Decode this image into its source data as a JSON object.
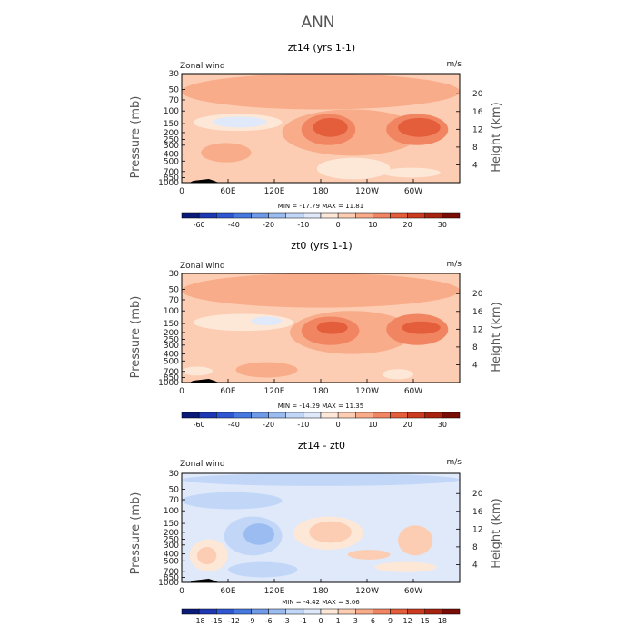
{
  "main_title": "ANN",
  "chart_data": [
    {
      "type": "heatmap",
      "title": "zt14 (yrs 1-1)",
      "field_label": "Zonal wind",
      "units": "m/s",
      "ylabel": "Pressure (mb)",
      "ylabel_right": "Height (km)",
      "x_ticks": [
        "0",
        "60E",
        "120E",
        "180",
        "120W",
        "60W"
      ],
      "x_values": [
        0,
        60,
        120,
        180,
        240,
        300
      ],
      "xlim": [
        0,
        360
      ],
      "y_ticks": [
        "30",
        "50",
        "70",
        "100",
        "150",
        "200",
        "250",
        "300",
        "400",
        "500",
        "700",
        "850",
        "1000"
      ],
      "y_values": [
        30,
        50,
        70,
        100,
        150,
        200,
        250,
        300,
        400,
        500,
        700,
        850,
        1000
      ],
      "ylim": [
        30,
        1000
      ],
      "height_ticks": [
        "20",
        "16",
        "12",
        "8",
        "4"
      ],
      "height_values": [
        20,
        16,
        12,
        8,
        4
      ],
      "stats": "MIN = -17.79   MAX =  11.81",
      "min": -17.79,
      "max": 11.81,
      "colorbar": [
        "-60",
        "-40",
        "-20",
        "-10",
        "0",
        "10",
        "20",
        "30"
      ],
      "colorbar_levels": [
        -70,
        -60,
        -50,
        -40,
        -30,
        -20,
        -15,
        -10,
        -5,
        0,
        5,
        10,
        15,
        20,
        25,
        30,
        35
      ],
      "background_level": 2,
      "regions": [
        {
          "lon": [
            0,
            360
          ],
          "p": [
            30,
            95
          ],
          "level": 5
        },
        {
          "lon": [
            15,
            130
          ],
          "p": [
            110,
            190
          ],
          "level": -5
        },
        {
          "lon": [
            40,
            110
          ],
          "p": [
            120,
            170
          ],
          "level": -10
        },
        {
          "lon": [
            130,
            310
          ],
          "p": [
            95,
            420
          ],
          "level": 5
        },
        {
          "lon": [
            155,
            225
          ],
          "p": [
            110,
            300
          ],
          "level": 10
        },
        {
          "lon": [
            170,
            215
          ],
          "p": [
            125,
            230
          ],
          "level": 15
        },
        {
          "lon": [
            265,
            345
          ],
          "p": [
            110,
            300
          ],
          "level": 10
        },
        {
          "lon": [
            280,
            335
          ],
          "p": [
            125,
            230
          ],
          "level": 15
        },
        {
          "lon": [
            25,
            90
          ],
          "p": [
            280,
            520
          ],
          "level": 5
        },
        {
          "lon": [
            175,
            270
          ],
          "p": [
            450,
            900
          ],
          "level": -2
        },
        {
          "lon": [
            260,
            335
          ],
          "p": [
            620,
            850
          ],
          "level": -2
        }
      ]
    },
    {
      "type": "heatmap",
      "title": "zt0 (yrs 1-1)",
      "field_label": "Zonal wind",
      "units": "m/s",
      "ylabel": "Pressure (mb)",
      "ylabel_right": "Height (km)",
      "x_ticks": [
        "0",
        "60E",
        "120E",
        "180",
        "120W",
        "60W"
      ],
      "x_values": [
        0,
        60,
        120,
        180,
        240,
        300
      ],
      "xlim": [
        0,
        360
      ],
      "y_ticks": [
        "30",
        "50",
        "70",
        "100",
        "150",
        "200",
        "250",
        "300",
        "400",
        "500",
        "700",
        "850",
        "1000"
      ],
      "y_values": [
        30,
        50,
        70,
        100,
        150,
        200,
        250,
        300,
        400,
        500,
        700,
        850,
        1000
      ],
      "ylim": [
        30,
        1000
      ],
      "height_ticks": [
        "20",
        "16",
        "12",
        "8",
        "4"
      ],
      "height_values": [
        20,
        16,
        12,
        8,
        4
      ],
      "stats": "MIN = -14.29   MAX =  11.35",
      "min": -14.29,
      "max": 11.35,
      "colorbar": [
        "-60",
        "-40",
        "-20",
        "-10",
        "0",
        "10",
        "20",
        "30"
      ],
      "colorbar_levels": [
        -70,
        -60,
        -50,
        -40,
        -30,
        -20,
        -15,
        -10,
        -5,
        0,
        5,
        10,
        15,
        20,
        25,
        30,
        35
      ],
      "background_level": 2,
      "regions": [
        {
          "lon": [
            0,
            360
          ],
          "p": [
            30,
            90
          ],
          "level": 5
        },
        {
          "lon": [
            15,
            145
          ],
          "p": [
            110,
            190
          ],
          "level": -5
        },
        {
          "lon": [
            90,
            130
          ],
          "p": [
            120,
            160
          ],
          "level": -10
        },
        {
          "lon": [
            140,
            300
          ],
          "p": [
            100,
            400
          ],
          "level": 5
        },
        {
          "lon": [
            155,
            230
          ],
          "p": [
            120,
            300
          ],
          "level": 10
        },
        {
          "lon": [
            175,
            215
          ],
          "p": [
            140,
            210
          ],
          "level": 15
        },
        {
          "lon": [
            265,
            345
          ],
          "p": [
            110,
            300
          ],
          "level": 10
        },
        {
          "lon": [
            285,
            335
          ],
          "p": [
            140,
            210
          ],
          "level": 15
        },
        {
          "lon": [
            70,
            150
          ],
          "p": [
            520,
            850
          ],
          "level": 5
        },
        {
          "lon": [
            0,
            40
          ],
          "p": [
            600,
            800
          ],
          "level": -5
        },
        {
          "lon": [
            260,
            300
          ],
          "p": [
            650,
            900
          ],
          "level": -5
        }
      ]
    },
    {
      "type": "heatmap",
      "title": "zt14 - zt0",
      "field_label": "Zonal wind",
      "units": "m/s",
      "ylabel": "Pressure (mb)",
      "ylabel_right": "Height (km)",
      "x_ticks": [
        "0",
        "60E",
        "120E",
        "180",
        "120W",
        "60W"
      ],
      "x_values": [
        0,
        60,
        120,
        180,
        240,
        300
      ],
      "xlim": [
        0,
        360
      ],
      "y_ticks": [
        "30",
        "50",
        "70",
        "100",
        "150",
        "200",
        "250",
        "300",
        "400",
        "500",
        "700",
        "850",
        "1000"
      ],
      "y_values": [
        30,
        50,
        70,
        100,
        150,
        200,
        250,
        300,
        400,
        500,
        700,
        850,
        1000
      ],
      "ylim": [
        30,
        1000
      ],
      "height_ticks": [
        "20",
        "16",
        "12",
        "8",
        "4"
      ],
      "height_values": [
        20,
        16,
        12,
        8,
        4
      ],
      "stats": "MIN =  -4.42   MAX =   3.06",
      "min": -4.42,
      "max": 3.06,
      "colorbar": [
        "-18",
        "-15",
        "-12",
        "-9",
        "-6",
        "-3",
        "-1",
        "0",
        "1",
        "3",
        "6",
        "9",
        "12",
        "15",
        "18"
      ],
      "colorbar_levels": [
        -21,
        -18,
        -15,
        -12,
        -9,
        -6,
        -3,
        -1,
        0,
        1,
        3,
        6,
        9,
        12,
        15,
        18,
        21
      ],
      "background_level": -0.5,
      "regions": [
        {
          "lon": [
            0,
            360
          ],
          "p": [
            30,
            45
          ],
          "level": -2
        },
        {
          "lon": [
            0,
            130
          ],
          "p": [
            55,
            95
          ],
          "level": -2
        },
        {
          "lon": [
            55,
            130
          ],
          "p": [
            120,
            420
          ],
          "level": -2
        },
        {
          "lon": [
            80,
            120
          ],
          "p": [
            150,
            300
          ],
          "level": -4
        },
        {
          "lon": [
            10,
            60
          ],
          "p": [
            250,
            700
          ],
          "level": 0.5
        },
        {
          "lon": [
            20,
            45
          ],
          "p": [
            320,
            560
          ],
          "level": 2
        },
        {
          "lon": [
            145,
            235
          ],
          "p": [
            120,
            350
          ],
          "level": 0.5
        },
        {
          "lon": [
            165,
            220
          ],
          "p": [
            140,
            280
          ],
          "level": 2
        },
        {
          "lon": [
            215,
            270
          ],
          "p": [
            350,
            480
          ],
          "level": 2
        },
        {
          "lon": [
            280,
            325
          ],
          "p": [
            160,
            420
          ],
          "level": 2
        },
        {
          "lon": [
            250,
            330
          ],
          "p": [
            520,
            720
          ],
          "level": 0.5
        },
        {
          "lon": [
            60,
            150
          ],
          "p": [
            520,
            850
          ],
          "level": -2
        }
      ]
    }
  ]
}
